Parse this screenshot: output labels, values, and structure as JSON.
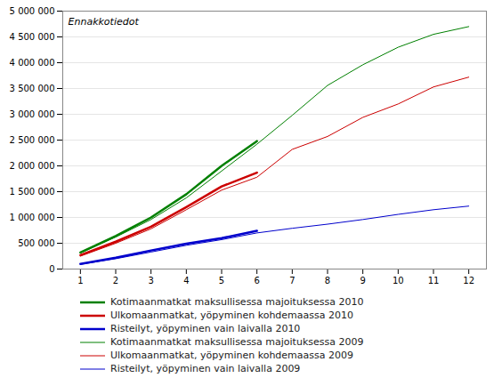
{
  "chart_data": {
    "type": "line",
    "annotation": "Ennakkotiedot",
    "x": [
      1,
      2,
      3,
      4,
      5,
      6,
      7,
      8,
      9,
      10,
      11,
      12
    ],
    "series": [
      {
        "name": "Kotimaanmatkat maksullisessa majoituksessa 2010",
        "color": "#008000",
        "values": [
          320000,
          640000,
          1000000,
          1450000,
          2000000,
          2480000,
          null,
          null,
          null,
          null,
          null,
          null
        ]
      },
      {
        "name": "Ulkomaanmatkat, yöpyminen kohdemaassa 2010",
        "color": "#cc0000",
        "values": [
          270000,
          530000,
          820000,
          1200000,
          1600000,
          1870000,
          null,
          null,
          null,
          null,
          null,
          null
        ]
      },
      {
        "name": "Risteilyt, yöpyminen vain laivalla 2010",
        "color": "#0000cc",
        "values": [
          100000,
          220000,
          360000,
          490000,
          600000,
          740000,
          null,
          null,
          null,
          null,
          null,
          null
        ]
      },
      {
        "name": "Kotimaanmatkat maksullisessa majoituksessa 2009",
        "color": "#008000",
        "values": [
          310000,
          620000,
          960000,
          1380000,
          1900000,
          2420000,
          2980000,
          3560000,
          3960000,
          4300000,
          4550000,
          4700000
        ]
      },
      {
        "name": "Ulkomaanmatkat, yöpyminen kohdemaassa 2009",
        "color": "#cc0000",
        "values": [
          250000,
          500000,
          780000,
          1150000,
          1530000,
          1780000,
          2320000,
          2570000,
          2940000,
          3200000,
          3530000,
          3720000
        ]
      },
      {
        "name": "Risteilyt, yöpyminen vain laivalla 2009",
        "color": "#0000cc",
        "values": [
          90000,
          200000,
          330000,
          460000,
          570000,
          700000,
          790000,
          870000,
          960000,
          1060000,
          1150000,
          1220000
        ]
      }
    ],
    "xlim": [
      0.5,
      12.5
    ],
    "xticks": [
      1,
      2,
      3,
      4,
      5,
      6,
      7,
      8,
      9,
      10,
      11,
      12
    ],
    "ylim": [
      0,
      5000000
    ],
    "yticks": [
      0,
      {
        "value": 500000,
        "label": "500 000"
      },
      {
        "value": 1000000,
        "label": "1 000 000"
      },
      {
        "value": 1500000,
        "label": "1 500 000"
      },
      {
        "value": 2000000,
        "label": "2 000 000"
      },
      {
        "value": 2500000,
        "label": "2 500 000"
      },
      {
        "value": 3000000,
        "label": "3 000 000"
      },
      {
        "value": 3500000,
        "label": "3 500 000"
      },
      {
        "value": 4000000,
        "label": "4 000 000"
      },
      {
        "value": 4500000,
        "label": "4 500 000"
      },
      {
        "value": 5000000,
        "label": "5 000 000"
      }
    ],
    "grid": true,
    "legend": "bottom"
  }
}
